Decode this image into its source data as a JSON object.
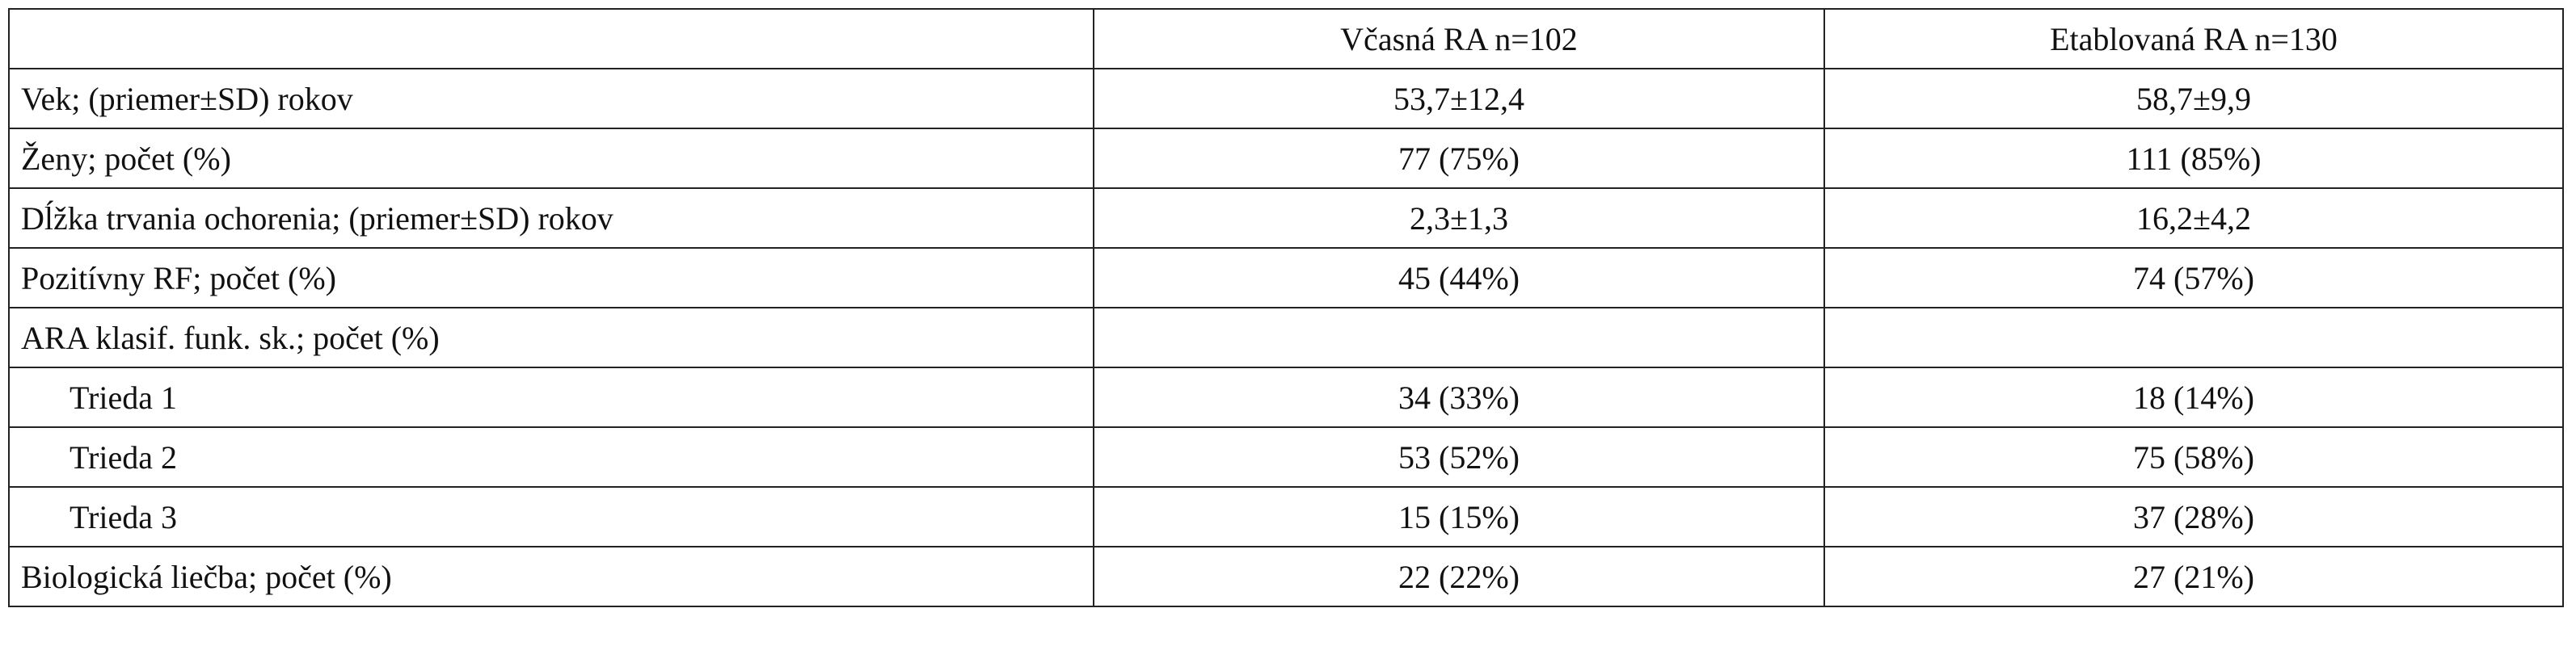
{
  "table": {
    "header": [
      "Včasná RA n=102",
      "Etablovaná RA n=130"
    ],
    "rows": [
      [
        "Vek; (priemer±SD) rokov",
        "53,7±12,4",
        "58,7±9,9"
      ],
      [
        "Ženy; počet (%)",
        "77 (75%)",
        "111 (85%)"
      ],
      [
        "Dĺžka trvania ochorenia; (priemer±SD) rokov",
        "2,3±1,3",
        "16,2±4,2"
      ],
      [
        "Pozitívny RF; počet (%)",
        "45 (44%)",
        "74 (57%)"
      ],
      [
        "ARA klasif. funk. sk.; počet (%)"
      ],
      [
        "Trieda 1",
        "34 (33%)",
        "18 (14%)"
      ],
      [
        "Trieda 2",
        "53 (52%)",
        "75 (58%)"
      ],
      [
        "Trieda 3",
        "15 (15%)",
        "37 (28%)"
      ],
      [
        "Biologická liečba; počet (%)",
        "22 (22%)",
        "27 (21%)"
      ]
    ]
  }
}
